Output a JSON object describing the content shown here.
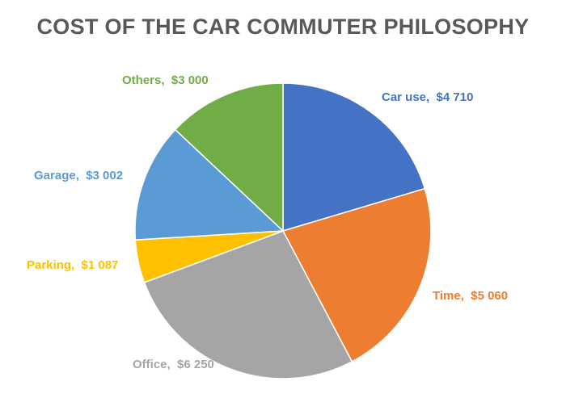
{
  "chart_data": {
    "type": "pie",
    "title": "COST OF THE CAR COMMUTER PHILOSOPHY",
    "slices": [
      {
        "name": "Car use",
        "value": 4710,
        "label": "Car use,  $4 710",
        "color": "#4472C4"
      },
      {
        "name": "Time",
        "value": 5060,
        "label": "Time,  $5 060",
        "color": "#ED7D31"
      },
      {
        "name": "Office",
        "value": 6250,
        "label": "Office,  $6 250",
        "color": "#A5A5A5"
      },
      {
        "name": "Parking",
        "value": 1087,
        "label": "Parking,  $1 087",
        "color": "#FFC000"
      },
      {
        "name": "Garage",
        "value": 3002,
        "label": "Garage,  $3 002",
        "color": "#5B9BD5"
      },
      {
        "name": "Others",
        "value": 3000,
        "label": "Others,  $3 000",
        "color": "#70AD47"
      }
    ],
    "start_angle": "12 o'clock",
    "direction": "clockwise"
  }
}
